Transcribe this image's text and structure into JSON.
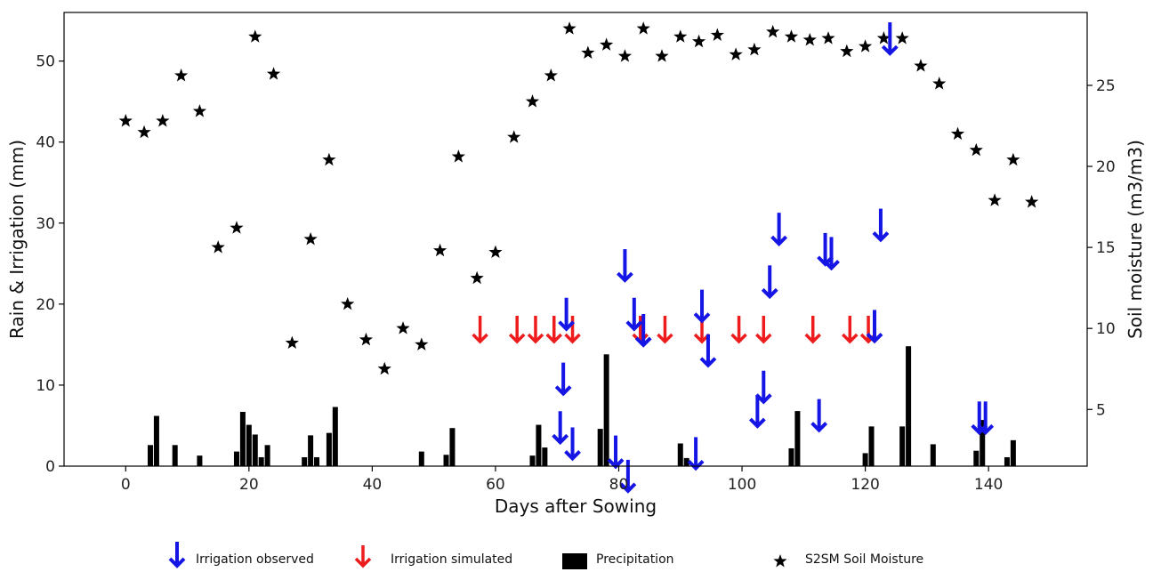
{
  "chart_data": {
    "type": "bar",
    "xlabel": "Days after Sowing",
    "ylabel": "Rain & Irrigation (mm)",
    "y2label": "Soil moisture (m3/m3)",
    "xlim": [
      -10,
      156
    ],
    "ylim": [
      0,
      56
    ],
    "y2lim": [
      1.5,
      29.5
    ],
    "xticks": [
      0,
      20,
      40,
      60,
      80,
      100,
      120,
      140
    ],
    "yticks": [
      0,
      10,
      20,
      30,
      40,
      50
    ],
    "y2ticks": [
      5,
      10,
      15,
      20,
      25
    ],
    "grid": false,
    "legend_position": "bottom",
    "colors": {
      "observed": "#1515e6",
      "simulated": "#ee1c1c",
      "precip": "#000000",
      "soil": "#000000"
    },
    "series": [
      {
        "name": "Irrigation observed",
        "type": "arrow",
        "axis": "left",
        "points": [
          [
            124,
            55
          ],
          [
            71.5,
            21
          ],
          [
            81,
            27
          ],
          [
            82.5,
            21
          ],
          [
            84,
            19
          ],
          [
            72.5,
            5
          ],
          [
            70.5,
            7
          ],
          [
            71,
            13
          ],
          [
            79.5,
            4
          ],
          [
            81.5,
            1
          ],
          [
            92.5,
            3.8
          ],
          [
            93.5,
            22
          ],
          [
            94.5,
            16.5
          ],
          [
            102.5,
            9
          ],
          [
            103.5,
            12
          ],
          [
            104.5,
            25
          ],
          [
            106,
            31.5
          ],
          [
            113.5,
            29
          ],
          [
            114.5,
            28.5
          ],
          [
            112.5,
            8.5
          ],
          [
            121.5,
            19.5
          ],
          [
            122.5,
            32
          ],
          [
            138.5,
            8.2
          ],
          [
            139.5,
            8.2
          ]
        ]
      },
      {
        "name": "Irrigation simulated",
        "type": "arrow",
        "axis": "left",
        "points": [
          [
            57.5,
            19
          ],
          [
            63.5,
            19
          ],
          [
            66.5,
            19
          ],
          [
            69.5,
            19
          ],
          [
            72.5,
            19
          ],
          [
            83.5,
            19
          ],
          [
            87.5,
            19
          ],
          [
            93.5,
            19
          ],
          [
            99.5,
            19
          ],
          [
            103.5,
            19
          ],
          [
            111.5,
            19
          ],
          [
            117.5,
            19
          ],
          [
            120.5,
            19
          ]
        ]
      },
      {
        "name": "Precipitation",
        "type": "bar",
        "axis": "left",
        "x": [
          4,
          5,
          8,
          12,
          18,
          19,
          20,
          21,
          22,
          23,
          29,
          30,
          31,
          33,
          34,
          48,
          52,
          53,
          66,
          67,
          68,
          77,
          78,
          90,
          91,
          108,
          109,
          120,
          121,
          126,
          127,
          131,
          138,
          139,
          143,
          144
        ],
        "values": [
          2.6,
          6.2,
          2.6,
          1.3,
          1.8,
          6.7,
          5.1,
          3.9,
          1.1,
          2.6,
          1.1,
          3.8,
          1.1,
          4.1,
          7.3,
          1.8,
          1.4,
          4.7,
          1.3,
          5.1,
          2.3,
          4.6,
          13.8,
          2.8,
          1.0,
          2.2,
          6.8,
          1.6,
          4.9,
          4.9,
          14.8,
          2.7,
          1.9,
          5.7,
          1.1,
          3.2
        ]
      },
      {
        "name": "S2SM Soil Moisture",
        "type": "scatter",
        "axis": "right",
        "x": [
          0,
          3,
          6,
          9,
          12,
          15,
          18,
          21,
          24,
          27,
          30,
          33,
          36,
          39,
          42,
          45,
          48,
          51,
          54,
          57,
          60,
          63,
          66,
          69,
          72,
          75,
          78,
          81,
          84,
          87,
          90,
          93,
          96,
          99,
          102,
          105,
          108,
          111,
          114,
          117,
          120,
          123,
          126,
          129,
          132,
          135,
          138,
          141,
          144,
          147
        ],
        "values": [
          22.8,
          22.1,
          22.8,
          25.6,
          23.4,
          15.0,
          16.2,
          28.0,
          25.7,
          9.1,
          15.5,
          20.4,
          11.5,
          9.3,
          7.5,
          10.0,
          9.0,
          14.8,
          20.6,
          13.1,
          14.7,
          21.8,
          24.0,
          25.6,
          28.5,
          27.0,
          27.5,
          26.8,
          28.5,
          26.8,
          28.0,
          27.7,
          28.1,
          26.9,
          27.2,
          28.3,
          28.0,
          27.8,
          27.9,
          27.1,
          27.4,
          27.9,
          27.9,
          26.2,
          25.1,
          22.0,
          21.0,
          17.9,
          20.4,
          17.8
        ]
      }
    ]
  }
}
